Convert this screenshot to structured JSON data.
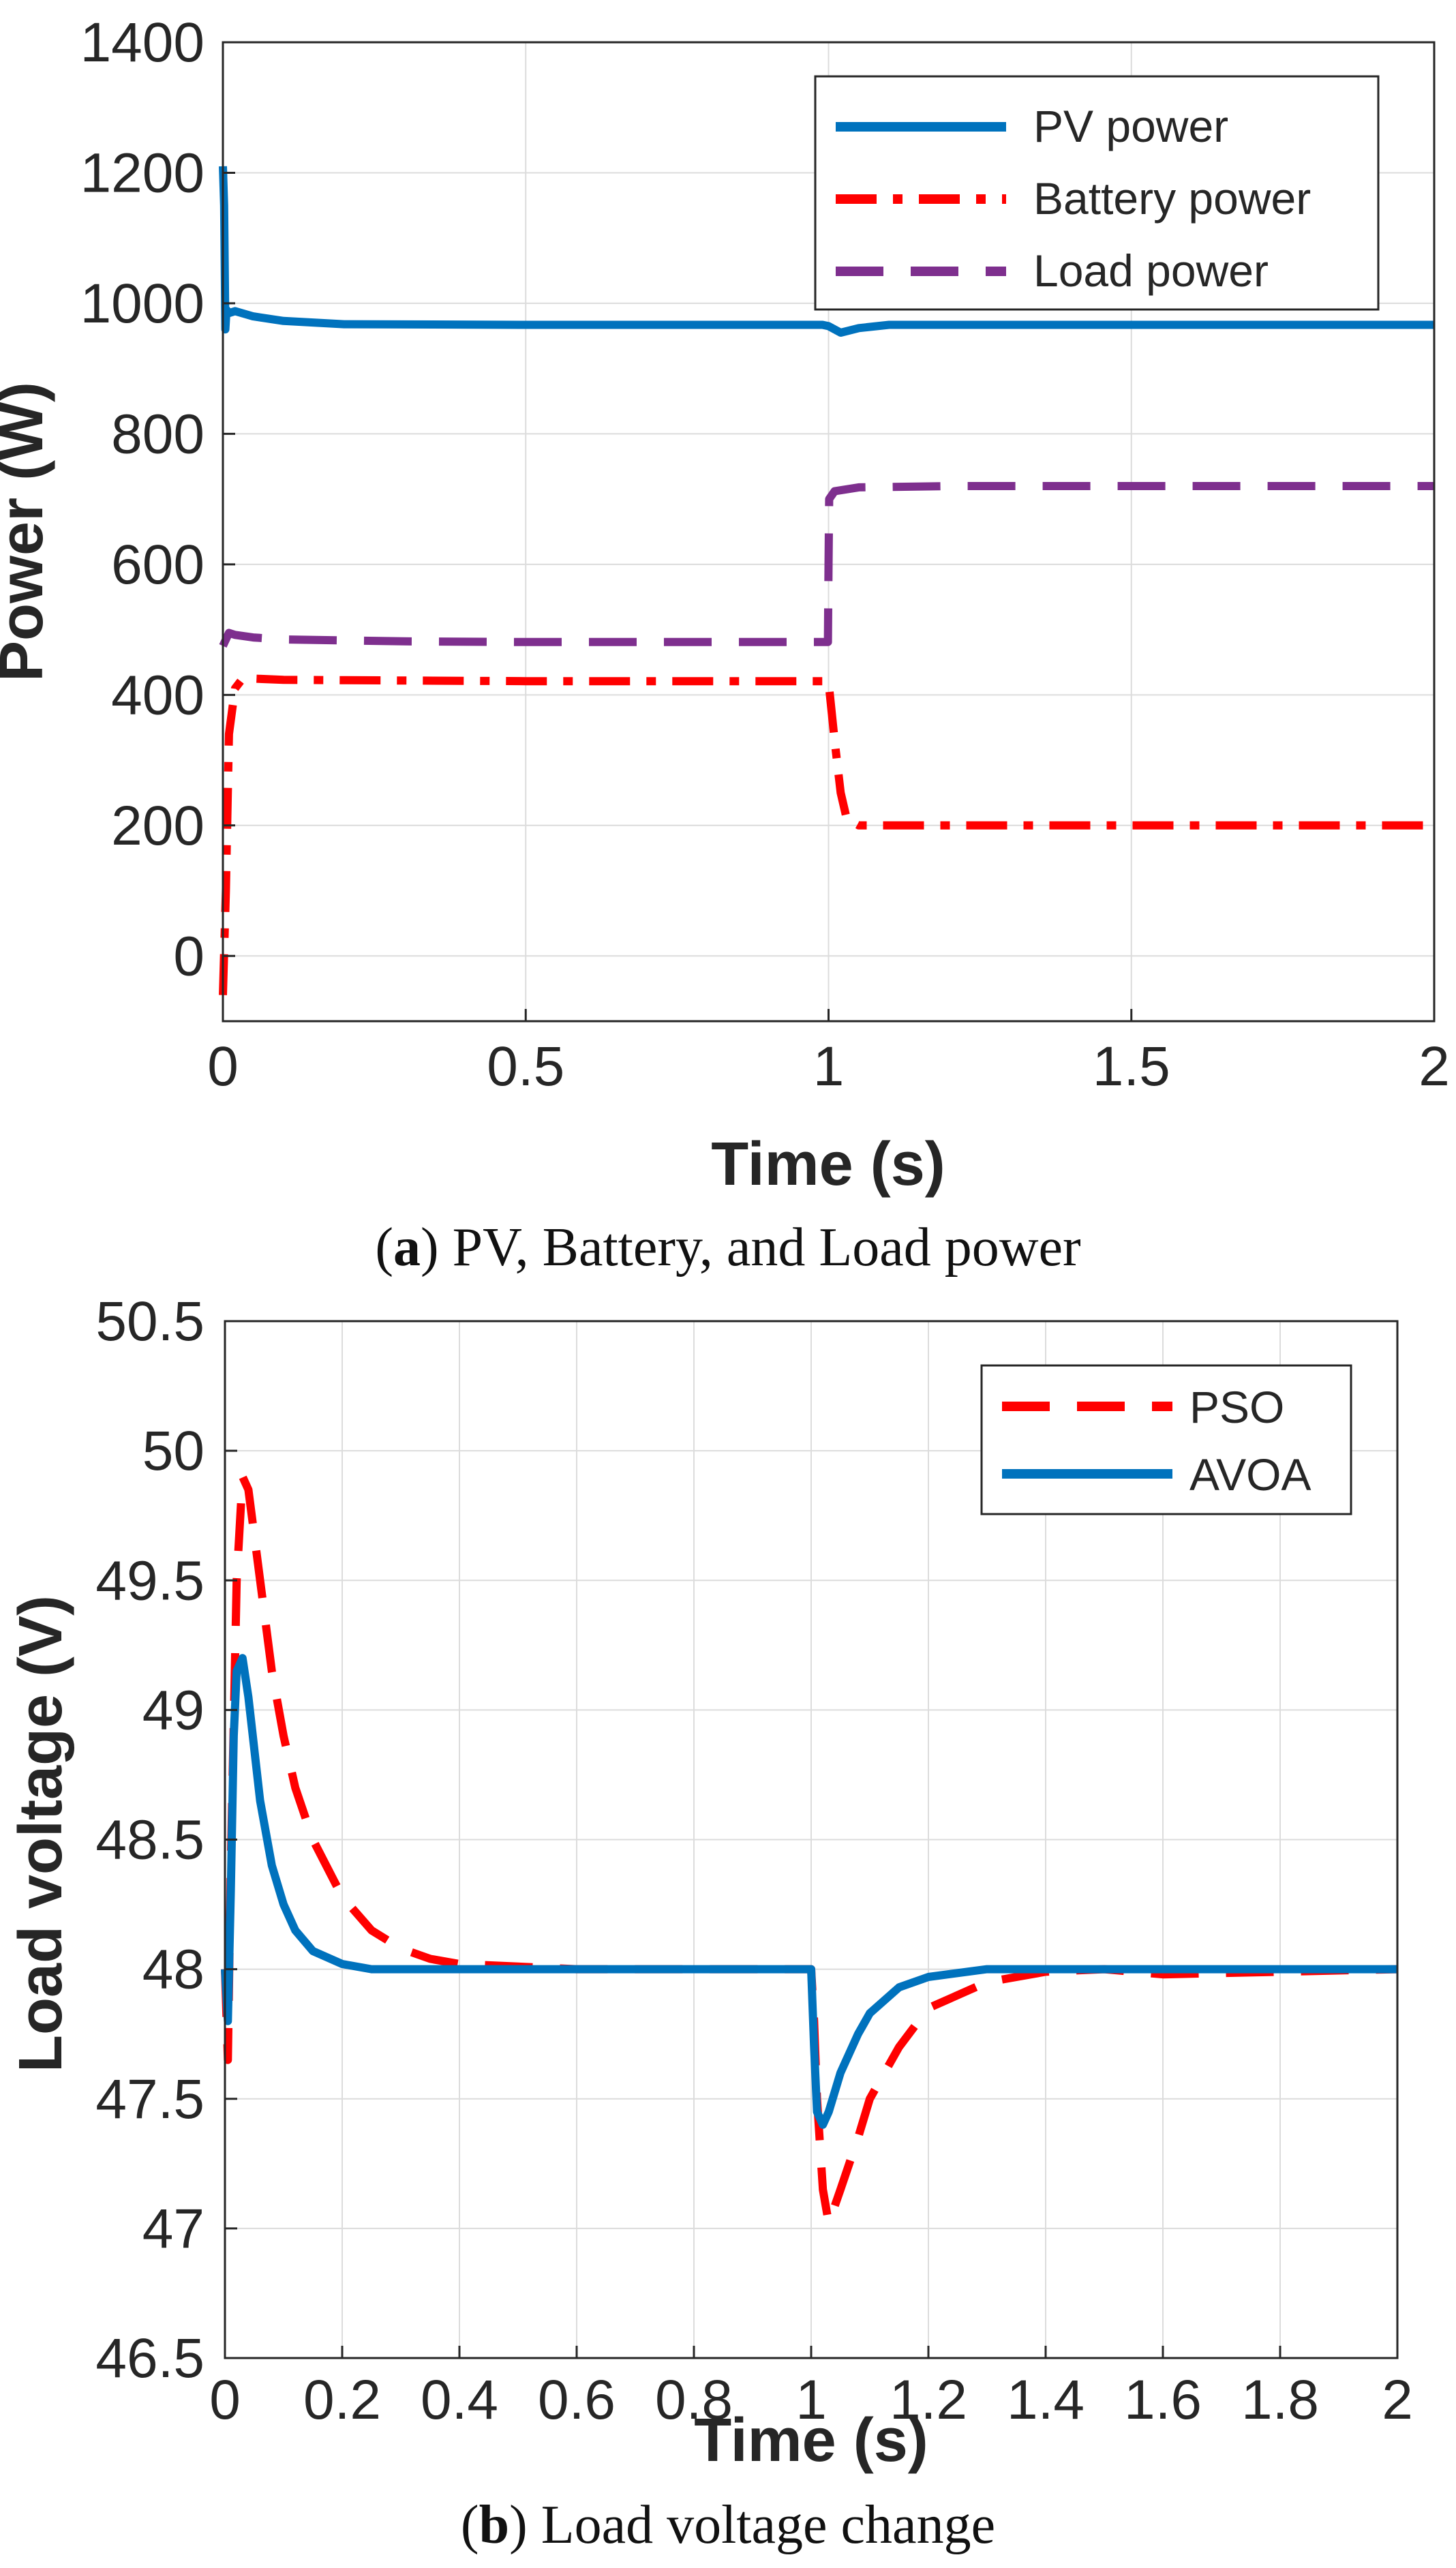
{
  "colors": {
    "blue": "#0072BD",
    "red": "#FF0000",
    "purple": "#7E2F8E",
    "grid": "#DCDCDC",
    "axis": "#262626"
  },
  "chart_data": [
    {
      "type": "line",
      "caption_letter": "a",
      "caption_text": " PV, Battery, and Load power",
      "xlabel": "Time (s)",
      "ylabel": "Power (W)",
      "xlim": [
        0,
        2
      ],
      "ylim": [
        -100,
        1400
      ],
      "xticks": [
        0,
        0.5,
        1,
        1.5,
        2
      ],
      "xtick_labels": [
        "0",
        "0.5",
        "1",
        "1.5",
        "2"
      ],
      "yticks": [
        0,
        200,
        400,
        600,
        800,
        1000,
        1200,
        1400
      ],
      "ytick_labels": [
        "0",
        "200",
        "400",
        "600",
        "800",
        "1000",
        "1200",
        "1400"
      ],
      "grid": true,
      "legend_position": "top-right",
      "series": [
        {
          "name": "PV power",
          "color": "#0072BD",
          "style": "solid",
          "x": [
            0,
            0.002,
            0.004,
            0.006,
            0.01,
            0.02,
            0.05,
            0.1,
            0.2,
            0.5,
            0.99,
            1.0,
            1.02,
            1.05,
            1.1,
            1.5,
            2.0
          ],
          "y": [
            1210,
            1150,
            960,
            990,
            985,
            988,
            980,
            973,
            968,
            967,
            967,
            965,
            955,
            962,
            967,
            967,
            967
          ]
        },
        {
          "name": "Battery power",
          "color": "#FF0000",
          "style": "dashdot",
          "x": [
            0,
            0.005,
            0.01,
            0.02,
            0.03,
            0.05,
            0.1,
            0.5,
            0.99,
            1.0,
            1.01,
            1.02,
            1.03,
            1.05,
            1.1,
            1.5,
            2.0
          ],
          "y": [
            -60,
            100,
            340,
            410,
            422,
            425,
            423,
            421,
            421,
            420,
            330,
            250,
            210,
            200,
            200,
            200,
            200
          ]
        },
        {
          "name": "Load power",
          "color": "#7E2F8E",
          "style": "dashed",
          "x": [
            0,
            0.01,
            0.02,
            0.05,
            0.1,
            0.3,
            0.5,
            0.999,
            1.0,
            1.001,
            1.01,
            1.05,
            1.2,
            1.5,
            2.0
          ],
          "y": [
            475,
            495,
            492,
            488,
            485,
            482,
            481,
            481,
            600,
            700,
            712,
            718,
            720,
            720,
            720
          ]
        }
      ]
    },
    {
      "type": "line",
      "caption_letter": "b",
      "caption_text": " Load voltage change",
      "xlabel": "Time (s)",
      "ylabel": "Load voltage (V)",
      "xlim": [
        0,
        2
      ],
      "ylim": [
        46.5,
        50.5
      ],
      "xticks": [
        0,
        0.2,
        0.4,
        0.6,
        0.8,
        1,
        1.2,
        1.4,
        1.6,
        1.8,
        2
      ],
      "xtick_labels": [
        "0",
        "0.2",
        "0.4",
        "0.6",
        "0.8",
        "1",
        "1.2",
        "1.4",
        "1.6",
        "1.8",
        "2"
      ],
      "yticks": [
        46.5,
        47,
        47.5,
        48,
        48.5,
        49,
        49.5,
        50,
        50.5
      ],
      "ytick_labels": [
        "46.5",
        "47",
        "47.5",
        "48",
        "48.5",
        "49",
        "49.5",
        "50",
        "50.5"
      ],
      "grid": true,
      "legend_position": "top-right",
      "series": [
        {
          "name": "PSO",
          "color": "#FF0000",
          "style": "dashed",
          "x": [
            0,
            0.005,
            0.01,
            0.02,
            0.03,
            0.04,
            0.06,
            0.08,
            0.1,
            0.12,
            0.15,
            0.2,
            0.25,
            0.3,
            0.35,
            0.4,
            0.5,
            0.6,
            1.0,
            1.005,
            1.01,
            1.02,
            1.03,
            1.05,
            1.08,
            1.1,
            1.15,
            1.2,
            1.3,
            1.4,
            1.5,
            1.6,
            2.0
          ],
          "y": [
            48.0,
            47.65,
            48.4,
            49.5,
            49.9,
            49.85,
            49.5,
            49.15,
            48.9,
            48.7,
            48.5,
            48.28,
            48.15,
            48.08,
            48.04,
            48.02,
            48.01,
            48.0,
            48.0,
            47.8,
            47.5,
            47.15,
            47.02,
            47.15,
            47.35,
            47.5,
            47.7,
            47.85,
            47.95,
            47.99,
            48.0,
            47.98,
            48.0
          ]
        },
        {
          "name": "AVOA",
          "color": "#0072BD",
          "style": "solid",
          "x": [
            0,
            0.005,
            0.01,
            0.015,
            0.02,
            0.03,
            0.04,
            0.05,
            0.06,
            0.08,
            0.1,
            0.12,
            0.15,
            0.2,
            0.25,
            0.3,
            0.4,
            0.5,
            1.0,
            1.005,
            1.01,
            1.02,
            1.03,
            1.05,
            1.08,
            1.1,
            1.15,
            1.2,
            1.3,
            1.5,
            2.0
          ],
          "y": [
            48.0,
            47.8,
            48.3,
            48.9,
            49.15,
            49.2,
            49.05,
            48.85,
            48.65,
            48.4,
            48.25,
            48.15,
            48.07,
            48.02,
            48.0,
            48.0,
            48.0,
            48.0,
            48.0,
            47.7,
            47.45,
            47.4,
            47.45,
            47.6,
            47.75,
            47.83,
            47.93,
            47.97,
            48.0,
            48.0,
            48.0
          ]
        }
      ]
    }
  ]
}
